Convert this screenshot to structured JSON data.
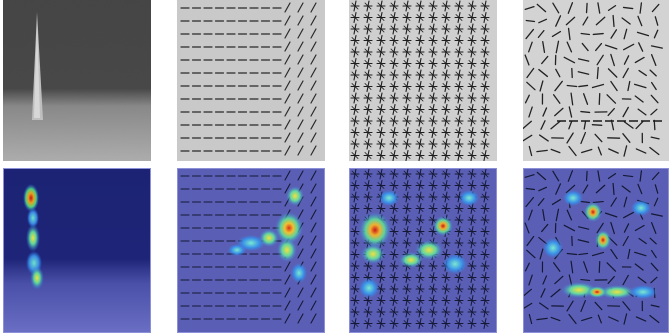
{
  "figure": {
    "layout": {
      "rows": 2,
      "columns": 4
    },
    "rows": [
      {
        "role": "input-images",
        "panels": [
          {
            "pattern": "narrow-bright-spike",
            "background": "dark-top-light-bottom"
          },
          {
            "pattern": "horizontal-dashes-with-diagonal-strip-right"
          },
          {
            "pattern": "dense-crosses"
          },
          {
            "pattern": "random-orientations-with-horizontal-line"
          }
        ]
      },
      {
        "role": "heatmap-overlays",
        "colormap": "jet",
        "base_tint": "#5a5fb5",
        "panels": [
          {
            "hotspot": "along-spike"
          },
          {
            "hotspot": "diagonal-strip-right"
          },
          {
            "hotspot": "scattered-clusters"
          },
          {
            "hotspot": "horizontal-line-and-blob"
          }
        ]
      }
    ]
  }
}
